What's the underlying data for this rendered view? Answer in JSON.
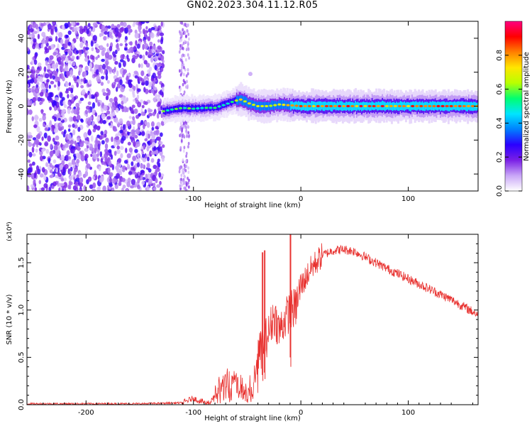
{
  "title": "GN02.2023.304.11.12.R05",
  "colorbar": {
    "label": "Normalized spectral amplitude",
    "ticks": [
      0.0,
      0.2,
      0.4,
      0.6,
      0.8
    ],
    "tick_labels": [
      "0.0",
      "0.2",
      "0.4",
      "0.6",
      "0.8"
    ],
    "range": [
      0,
      1
    ],
    "colormap": [
      "#ffffff",
      "#c9a6f7",
      "#7a1fe6",
      "#2a00ff",
      "#0080ff",
      "#00e5ff",
      "#00ff70",
      "#b8ff00",
      "#ffe600",
      "#ff8000",
      "#ff0000",
      "#ff0080"
    ]
  },
  "chart_data": [
    {
      "type": "heatmap",
      "name": "spectrogram",
      "xlabel": "Height of straight line (km)",
      "ylabel": "Frequency (Hz)",
      "xlim": [
        -255,
        165
      ],
      "ylim": [
        -50,
        50
      ],
      "xticks": [
        -200,
        -100,
        0,
        100
      ],
      "xtick_labels": [
        "-200",
        "-100",
        "0",
        "100"
      ],
      "yticks": [
        -40,
        -20,
        0,
        20,
        40
      ],
      "ytick_labels": [
        "-40",
        "-20",
        "0",
        "20",
        "40"
      ],
      "grid": false,
      "noise_region_x": [
        -255,
        -128
      ],
      "noise_streak_x": [
        -113,
        -104
      ],
      "noise_blip": {
        "x": -47,
        "y": 19
      },
      "center_frequency_trace": {
        "x": [
          -128,
          -120,
          -110,
          -100,
          -90,
          -80,
          -70,
          -62,
          -55,
          -50,
          -45,
          -40,
          -30,
          -20,
          0,
          50,
          100,
          165
        ],
        "y": [
          -3,
          -2,
          -1,
          -1.5,
          -1,
          -1,
          1,
          3,
          4,
          2,
          1,
          0,
          0,
          1,
          0,
          0,
          0,
          0
        ]
      }
    },
    {
      "type": "line",
      "name": "snr",
      "xlabel": "Height of straight line (km)",
      "ylabel": "SNR (10 * v/v)",
      "y_multiplier_label": "(x10⁴)",
      "xlim": [
        -255,
        165
      ],
      "ylim": [
        0,
        1.8
      ],
      "xticks": [
        -200,
        -100,
        0,
        100
      ],
      "xtick_labels": [
        "-200",
        "-100",
        "0",
        "100"
      ],
      "yticks": [
        0.0,
        0.5,
        1.0,
        1.5
      ],
      "ytick_labels": [
        "0.0",
        "0.5",
        "1.0",
        "1.5"
      ],
      "grid": false,
      "color": "#e8312f",
      "series": [
        {
          "x": [
            -255,
            -200,
            -150,
            -110,
            -100,
            -95,
            -85,
            -80,
            -75,
            -70,
            -60,
            -50,
            -45,
            -40,
            -35,
            -30,
            -25,
            -20,
            -15,
            -10,
            -5,
            0,
            10,
            20,
            30,
            40,
            50,
            60,
            80,
            100,
            120,
            140,
            165
          ],
          "y": [
            0.01,
            0.01,
            0.01,
            0.02,
            0.07,
            0.04,
            0.02,
            0.1,
            0.22,
            0.3,
            0.26,
            0.12,
            0.22,
            0.5,
            0.66,
            0.75,
            0.95,
            0.78,
            0.9,
            1.0,
            1.02,
            1.25,
            1.45,
            1.58,
            1.63,
            1.64,
            1.62,
            1.56,
            1.44,
            1.33,
            1.22,
            1.11,
            0.95
          ]
        }
      ],
      "spikes": [
        {
          "x": -36,
          "y": 1.61
        },
        {
          "x": -34,
          "y": 1.63
        },
        {
          "x": -10,
          "y": 1.85
        }
      ]
    }
  ]
}
